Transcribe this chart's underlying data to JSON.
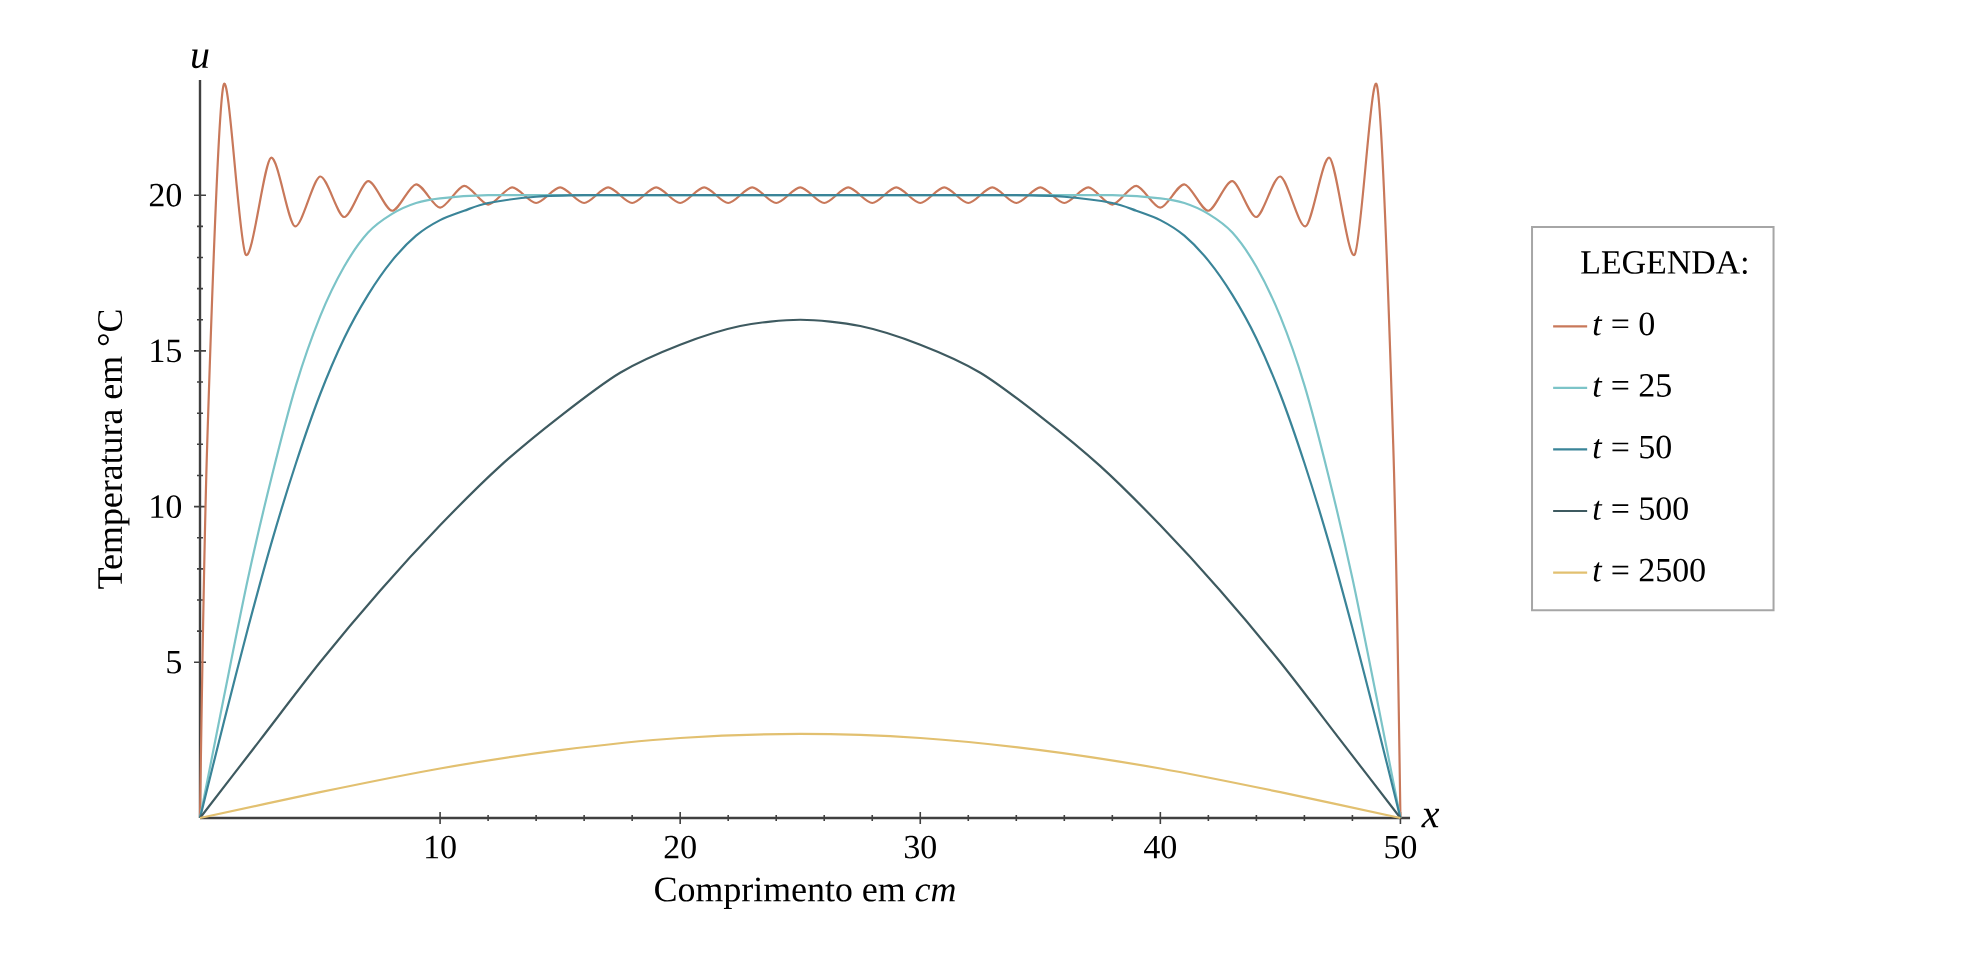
{
  "chart_data": {
    "type": "line",
    "xlabel": "Comprimento em *cm*",
    "ylabel": "Temperatura em °C",
    "legend_title": "LEGENDA:",
    "legend": "right",
    "annotations": [
      "*u*",
      "*x*"
    ],
    "xlim": [
      0,
      50.4
    ],
    "ylim": [
      0,
      23.7
    ],
    "xticks": [
      10,
      20,
      30,
      40,
      50
    ],
    "yticks": [
      5,
      10,
      15,
      20
    ],
    "series": [
      {
        "name": "*t* = 0",
        "color": "#c8785a",
        "x": [
          0,
          0.3,
          0.97,
          1.9,
          2.95,
          3.95,
          5,
          6,
          7,
          8,
          9,
          10,
          11,
          12,
          13,
          14,
          15,
          16,
          17,
          18,
          19,
          20,
          21,
          22,
          23,
          24,
          25,
          26,
          27,
          28,
          29,
          30,
          31,
          32,
          33,
          34,
          35,
          36,
          37,
          38,
          39,
          40,
          41,
          42,
          43,
          44,
          45,
          46.05,
          47.05,
          48.1,
          49.03,
          49.7,
          50
        ],
        "values": [
          0,
          12,
          23.5,
          18.1,
          21.2,
          19.0,
          20.6,
          19.3,
          20.45,
          19.5,
          20.35,
          19.6,
          20.3,
          19.7,
          20.25,
          19.75,
          20.25,
          19.75,
          20.25,
          19.75,
          20.25,
          19.75,
          20.25,
          19.75,
          20.25,
          19.75,
          20.25,
          19.75,
          20.25,
          19.75,
          20.25,
          19.75,
          20.25,
          19.75,
          20.25,
          19.75,
          20.25,
          19.75,
          20.25,
          19.7,
          20.3,
          19.6,
          20.35,
          19.5,
          20.45,
          19.3,
          20.6,
          19.0,
          21.2,
          18.1,
          23.5,
          12,
          0
        ]
      },
      {
        "name": "*t* = 25",
        "color": "#7cc4c8",
        "x": [
          0,
          1,
          2,
          3,
          4,
          5,
          6,
          7,
          8,
          9,
          10,
          12,
          15,
          20,
          25,
          30,
          35,
          38,
          40,
          41,
          42,
          43,
          44,
          45,
          46,
          47,
          48,
          49,
          50
        ],
        "values": [
          0,
          3.9,
          7.7,
          11.0,
          13.9,
          16.1,
          17.7,
          18.8,
          19.4,
          19.75,
          19.9,
          20,
          20,
          20,
          20,
          20,
          20,
          20,
          19.9,
          19.75,
          19.4,
          18.8,
          17.7,
          16.1,
          13.9,
          11.0,
          7.7,
          3.9,
          0
        ]
      },
      {
        "name": "*t* = 50",
        "color": "#3a8498",
        "x": [
          0,
          1,
          2,
          3,
          4,
          5,
          6,
          7,
          8,
          9,
          10,
          11,
          12,
          14,
          16,
          20,
          25,
          30,
          34,
          36,
          38,
          39,
          40,
          41,
          42,
          43,
          44,
          45,
          46,
          47,
          48,
          49,
          50
        ],
        "values": [
          0,
          3.1,
          6.1,
          8.9,
          11.4,
          13.6,
          15.4,
          16.8,
          17.9,
          18.7,
          19.2,
          19.5,
          19.75,
          19.95,
          20,
          20,
          20,
          20,
          20,
          19.95,
          19.75,
          19.5,
          19.2,
          18.7,
          17.9,
          16.8,
          15.4,
          13.6,
          11.4,
          8.9,
          6.1,
          3.1,
          0
        ]
      },
      {
        "name": "*t* = 500",
        "color": "#3e5a60",
        "x": [
          0,
          2.5,
          5,
          7.5,
          10,
          12.5,
          15,
          17.5,
          20,
          22.5,
          25,
          27.5,
          30,
          32.5,
          35,
          37.5,
          40,
          42.5,
          45,
          47.5,
          50
        ],
        "values": [
          0,
          2.5,
          5.0,
          7.3,
          9.4,
          11.3,
          12.9,
          14.3,
          15.2,
          15.8,
          16.0,
          15.8,
          15.2,
          14.3,
          12.9,
          11.3,
          9.4,
          7.3,
          5.0,
          2.5,
          0
        ]
      },
      {
        "name": "*t* = 2500",
        "color": "#e2c070",
        "x": [
          0,
          5,
          10,
          15,
          20,
          25,
          30,
          35,
          40,
          45,
          50
        ],
        "values": [
          0,
          0.83,
          1.59,
          2.18,
          2.57,
          2.7,
          2.57,
          2.18,
          1.59,
          0.83,
          0
        ]
      }
    ]
  }
}
